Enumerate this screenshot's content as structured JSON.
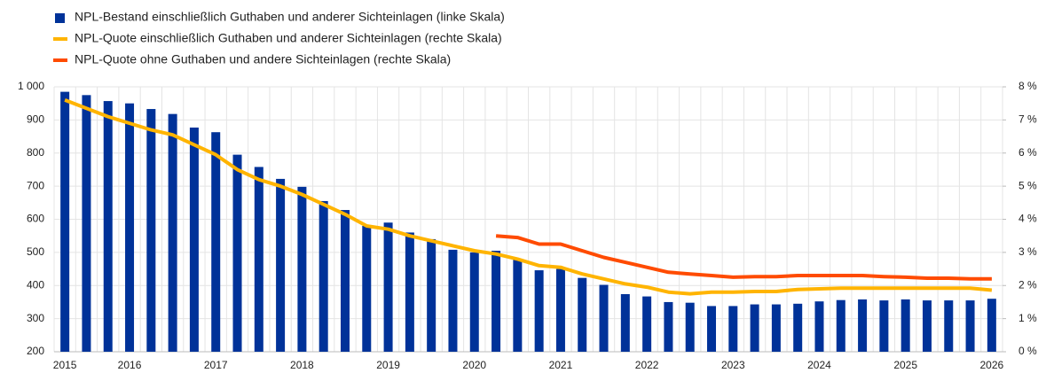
{
  "chart_data": {
    "type": "bar",
    "categories": [
      "2015",
      null,
      null,
      "2016",
      null,
      null,
      null,
      "2017",
      null,
      null,
      null,
      "2018",
      null,
      null,
      null,
      "2019",
      null,
      null,
      null,
      "2020",
      null,
      null,
      null,
      "2021",
      null,
      null,
      null,
      "2022",
      null,
      null,
      null,
      "2023",
      null,
      null,
      null,
      "2024",
      null,
      null,
      null,
      "2025",
      null,
      null,
      null,
      "2026"
    ],
    "series": [
      {
        "name": "NPL-Bestand einschließlich Guthaben und anderer Sichteinlagen (linke Skala)",
        "type": "bar",
        "axis": "y",
        "color": "#003299",
        "values": [
          985,
          975,
          957,
          950,
          933,
          918,
          877,
          863,
          795,
          758,
          722,
          698,
          655,
          628,
          580,
          590,
          560,
          540,
          508,
          500,
          505,
          478,
          446,
          450,
          423,
          402,
          374,
          367,
          350,
          348,
          338,
          338,
          343,
          343,
          345,
          352,
          356,
          358,
          355,
          358,
          355,
          355,
          355,
          360
        ]
      },
      {
        "name": "NPL-Quote einschließlich Guthaben und anderer Sichteinlagen (rechte Skala)",
        "type": "line",
        "axis": "y2",
        "color": "#ffb400",
        "values": [
          7.6,
          7.35,
          7.1,
          6.9,
          6.7,
          6.55,
          6.25,
          5.95,
          5.5,
          5.2,
          5.0,
          4.75,
          4.45,
          4.15,
          3.8,
          3.7,
          3.5,
          3.35,
          3.2,
          3.05,
          2.95,
          2.8,
          2.6,
          2.55,
          2.35,
          2.2,
          2.05,
          1.95,
          1.8,
          1.75,
          1.8,
          1.8,
          1.82,
          1.82,
          1.88,
          1.9,
          1.92,
          1.92,
          1.92,
          1.92,
          1.92,
          1.92,
          1.92,
          1.86
        ]
      },
      {
        "name": "NPL-Quote ohne Guthaben und andere Sichteinlagen (rechte Skala)",
        "type": "line",
        "axis": "y2",
        "color": "#ff4b00",
        "values": [
          null,
          null,
          null,
          null,
          null,
          null,
          null,
          null,
          null,
          null,
          null,
          null,
          null,
          null,
          null,
          null,
          null,
          null,
          null,
          null,
          3.5,
          3.45,
          3.25,
          3.25,
          3.05,
          2.85,
          2.7,
          2.55,
          2.4,
          2.35,
          2.3,
          2.25,
          2.27,
          2.27,
          2.3,
          2.3,
          2.3,
          2.3,
          2.27,
          2.25,
          2.22,
          2.22,
          2.2,
          2.2
        ]
      }
    ],
    "ylim": [
      200,
      1000
    ],
    "yticks": [
      200,
      300,
      400,
      500,
      600,
      700,
      800,
      900,
      {
        "value": 1000,
        "label": "1 000"
      }
    ],
    "y2lim": [
      0,
      8
    ],
    "y2ticks": [
      {
        "value": 0,
        "label": "0 %"
      },
      {
        "value": 1,
        "label": "1 %"
      },
      {
        "value": 2,
        "label": "2 %"
      },
      {
        "value": 3,
        "label": "3 %"
      },
      {
        "value": 4,
        "label": "4 %"
      },
      {
        "value": 5,
        "label": "5 %"
      },
      {
        "value": 6,
        "label": "6 %"
      },
      {
        "value": 7,
        "label": "7 %"
      },
      {
        "value": 8,
        "label": "8 %"
      }
    ],
    "grid": true
  }
}
